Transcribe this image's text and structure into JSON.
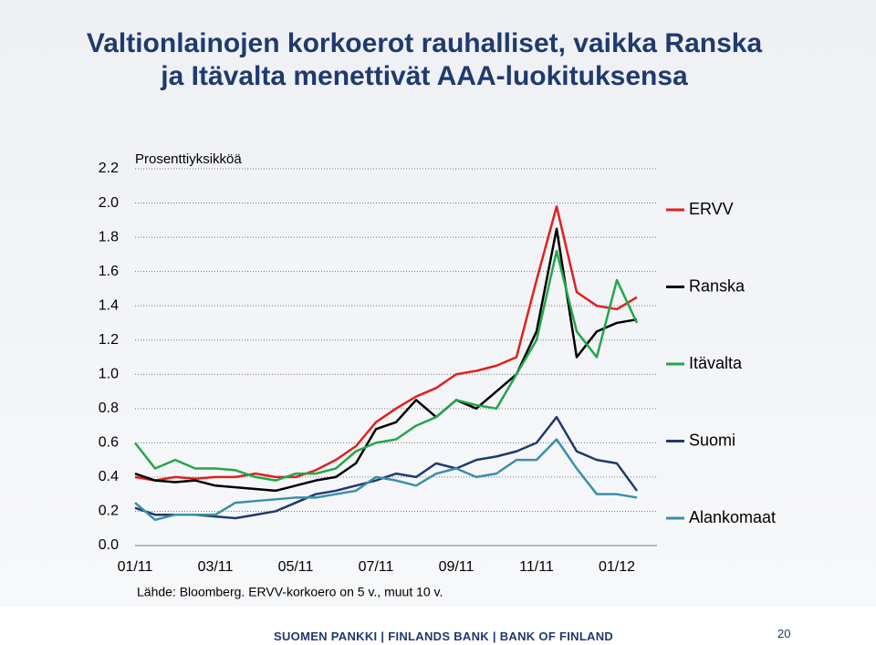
{
  "chart_data": {
    "type": "line",
    "title": "Valtionlainojen korkoerot rauhalliset, vaikka Ranska ja Itävalta menettivät AAA-luokituksensa",
    "y_label": "Prosenttiyksikköä",
    "source": "Lähde: Bloomberg. ERVV-korkoero on 5 v., muut 10 v.",
    "categories": [
      "01/11",
      null,
      null,
      null,
      "03/11",
      null,
      null,
      null,
      "05/11",
      null,
      null,
      null,
      "07/11",
      null,
      null,
      null,
      "09/11",
      null,
      null,
      null,
      "11/11",
      null,
      null,
      null,
      "01/12",
      null
    ],
    "ylim": [
      0,
      2.2
    ],
    "yticks": [
      {
        "value": 0,
        "label": "0.0"
      },
      0.2,
      0.4,
      0.6,
      0.8,
      {
        "value": 1,
        "label": "1.0"
      },
      1.2,
      1.4,
      1.6,
      1.8,
      {
        "value": 2,
        "label": "2.0"
      },
      2.2
    ],
    "grid": true,
    "legend": "right",
    "series": [
      {
        "name": "ERVV",
        "color": "#e0201e",
        "values": [
          0.4,
          0.38,
          0.4,
          0.39,
          0.4,
          0.4,
          0.42,
          0.4,
          0.4,
          0.44,
          0.5,
          0.58,
          0.72,
          0.8,
          0.87,
          0.92,
          1.0,
          1.02,
          1.05,
          1.1,
          1.55,
          1.98,
          1.48,
          1.4,
          1.38,
          1.45
        ]
      },
      {
        "name": "Ranska",
        "color": "#000000",
        "values": [
          0.42,
          0.38,
          0.37,
          0.38,
          0.35,
          0.34,
          0.33,
          0.32,
          0.35,
          0.38,
          0.4,
          0.48,
          0.68,
          0.72,
          0.85,
          0.75,
          0.85,
          0.8,
          0.9,
          1.0,
          1.25,
          1.85,
          1.1,
          1.25,
          1.3,
          1.32
        ]
      },
      {
        "name": "Itävalta",
        "color": "#23a64a",
        "values": [
          0.6,
          0.45,
          0.5,
          0.45,
          0.45,
          0.44,
          0.4,
          0.38,
          0.42,
          0.42,
          0.45,
          0.55,
          0.6,
          0.62,
          0.7,
          0.75,
          0.85,
          0.82,
          0.8,
          1.0,
          1.2,
          1.72,
          1.25,
          1.1,
          1.55,
          1.3
        ]
      },
      {
        "name": "Suomi",
        "color": "#1f3a6e",
        "values": [
          0.22,
          0.18,
          0.18,
          0.18,
          0.17,
          0.16,
          0.18,
          0.2,
          0.25,
          0.3,
          0.32,
          0.35,
          0.38,
          0.42,
          0.4,
          0.48,
          0.45,
          0.5,
          0.52,
          0.55,
          0.6,
          0.75,
          0.55,
          0.5,
          0.48,
          0.32
        ]
      },
      {
        "name": "Alankomaat",
        "color": "#3a8fa8",
        "values": [
          0.25,
          0.15,
          0.18,
          0.18,
          0.18,
          0.25,
          0.26,
          0.27,
          0.28,
          0.28,
          0.3,
          0.32,
          0.4,
          0.38,
          0.35,
          0.42,
          0.45,
          0.4,
          0.42,
          0.5,
          0.5,
          0.62,
          0.45,
          0.3,
          0.3,
          0.28
        ]
      }
    ]
  },
  "footer": {
    "bank": "SUOMEN PANKKI | FINLANDS BANK | BANK OF FINLAND",
    "page": 20
  }
}
